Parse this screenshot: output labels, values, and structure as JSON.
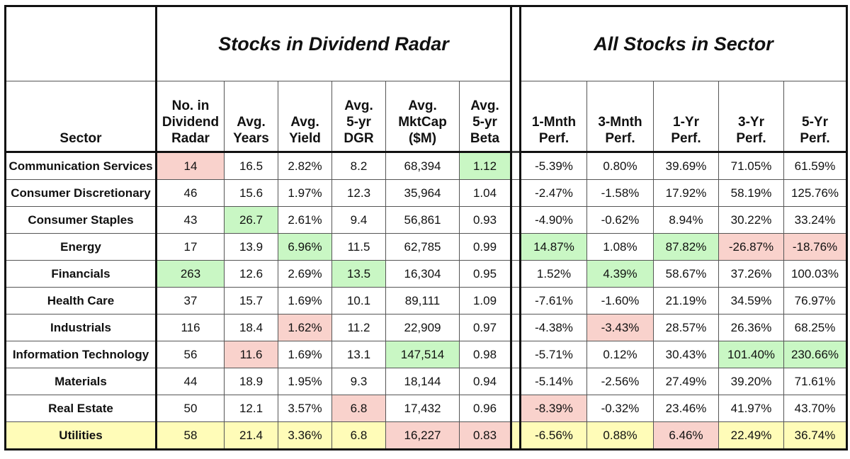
{
  "groups": {
    "radar": "Stocks in Dividend Radar",
    "all": "All Stocks in Sector"
  },
  "columns": {
    "sector": "Sector",
    "count": [
      "No. in",
      "Dividend",
      "Radar"
    ],
    "years": [
      "Avg.",
      "Years"
    ],
    "yield": [
      "Avg.",
      "Yield"
    ],
    "dgr": [
      "Avg.",
      "5-yr",
      "DGR"
    ],
    "mktcap": [
      "Avg.",
      "MktCap",
      "($M)"
    ],
    "beta": [
      "Avg.",
      "5-yr",
      "Beta"
    ],
    "m1": [
      "1-Mnth",
      "Perf."
    ],
    "m3": [
      "3-Mnth",
      "Perf."
    ],
    "y1": [
      "1-Yr",
      "Perf."
    ],
    "y3": [
      "3-Yr",
      "Perf."
    ],
    "y5": [
      "5-Yr",
      "Perf."
    ]
  },
  "colors": {
    "highlight_green": "#c9f7c4",
    "highlight_red": "#f9d2cc",
    "utilities_row": "#fffcb8"
  },
  "rows": [
    {
      "sector": "Communication Services",
      "count": "14",
      "years": "16.5",
      "yield": "2.82%",
      "dgr": "8.2",
      "mktcap": "68,394",
      "beta": "1.12",
      "m1": "-5.39%",
      "m3": "0.80%",
      "y1": "39.69%",
      "y3": "71.05%",
      "y5": "61.59%"
    },
    {
      "sector": "Consumer Discretionary",
      "count": "46",
      "years": "15.6",
      "yield": "1.97%",
      "dgr": "12.3",
      "mktcap": "35,964",
      "beta": "1.04",
      "m1": "-2.47%",
      "m3": "-1.58%",
      "y1": "17.92%",
      "y3": "58.19%",
      "y5": "125.76%"
    },
    {
      "sector": "Consumer Staples",
      "count": "43",
      "years": "26.7",
      "yield": "2.61%",
      "dgr": "9.4",
      "mktcap": "56,861",
      "beta": "0.93",
      "m1": "-4.90%",
      "m3": "-0.62%",
      "y1": "8.94%",
      "y3": "30.22%",
      "y5": "33.24%"
    },
    {
      "sector": "Energy",
      "count": "17",
      "years": "13.9",
      "yield": "6.96%",
      "dgr": "11.5",
      "mktcap": "62,785",
      "beta": "0.99",
      "m1": "14.87%",
      "m3": "1.08%",
      "y1": "87.82%",
      "y3": "-26.87%",
      "y5": "-18.76%"
    },
    {
      "sector": "Financials",
      "count": "263",
      "years": "12.6",
      "yield": "2.69%",
      "dgr": "13.5",
      "mktcap": "16,304",
      "beta": "0.95",
      "m1": "1.52%",
      "m3": "4.39%",
      "y1": "58.67%",
      "y3": "37.26%",
      "y5": "100.03%"
    },
    {
      "sector": "Health Care",
      "count": "37",
      "years": "15.7",
      "yield": "1.69%",
      "dgr": "10.1",
      "mktcap": "89,111",
      "beta": "1.09",
      "m1": "-7.61%",
      "m3": "-1.60%",
      "y1": "21.19%",
      "y3": "34.59%",
      "y5": "76.97%"
    },
    {
      "sector": "Industrials",
      "count": "116",
      "years": "18.4",
      "yield": "1.62%",
      "dgr": "11.2",
      "mktcap": "22,909",
      "beta": "0.97",
      "m1": "-4.38%",
      "m3": "-3.43%",
      "y1": "28.57%",
      "y3": "26.36%",
      "y5": "68.25%"
    },
    {
      "sector": "Information Technology",
      "count": "56",
      "years": "11.6",
      "yield": "1.69%",
      "dgr": "13.1",
      "mktcap": "147,514",
      "beta": "0.98",
      "m1": "-5.71%",
      "m3": "0.12%",
      "y1": "30.43%",
      "y3": "101.40%",
      "y5": "230.66%"
    },
    {
      "sector": "Materials",
      "count": "44",
      "years": "18.9",
      "yield": "1.95%",
      "dgr": "9.3",
      "mktcap": "18,144",
      "beta": "0.94",
      "m1": "-5.14%",
      "m3": "-2.56%",
      "y1": "27.49%",
      "y3": "39.20%",
      "y5": "71.61%"
    },
    {
      "sector": "Real Estate",
      "count": "50",
      "years": "12.1",
      "yield": "3.57%",
      "dgr": "6.8",
      "mktcap": "17,432",
      "beta": "0.96",
      "m1": "-8.39%",
      "m3": "-0.32%",
      "y1": "23.46%",
      "y3": "41.97%",
      "y5": "43.70%"
    },
    {
      "sector": "Utilities",
      "count": "58",
      "years": "21.4",
      "yield": "3.36%",
      "dgr": "6.8",
      "mktcap": "16,227",
      "beta": "0.83",
      "m1": "-6.56%",
      "m3": "0.88%",
      "y1": "6.46%",
      "y3": "22.49%",
      "y5": "36.74%"
    }
  ]
}
